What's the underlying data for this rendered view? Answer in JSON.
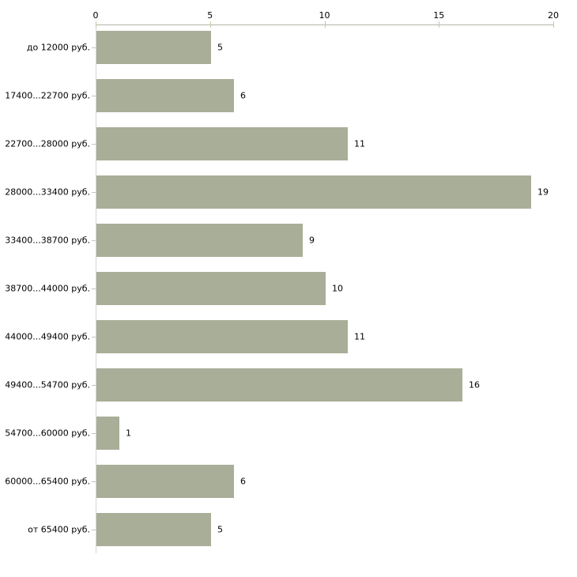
{
  "chart_data": {
    "type": "bar",
    "orientation": "horizontal",
    "title": "",
    "xlabel": "",
    "ylabel": "",
    "categories": [
      "до 12000 руб.",
      "17400...22700 руб.",
      "22700...28000 руб.",
      "28000...33400 руб.",
      "33400...38700 руб.",
      "38700...44000 руб.",
      "44000...49400 руб.",
      "49400...54700 руб.",
      "54700...60000 руб.",
      "60000...65400 руб.",
      "от 65400 руб."
    ],
    "values": [
      5,
      6,
      11,
      19,
      9,
      10,
      11,
      16,
      1,
      6,
      5
    ],
    "x_ticks": [
      0,
      5,
      10,
      15,
      20
    ],
    "xlim": [
      0,
      20
    ],
    "grid": false,
    "legend": false,
    "data_labels": true,
    "axis_position": "top",
    "colors": {
      "bar": "#a9ae98",
      "top_axis_line": "#b3b3ab",
      "left_axis_line": "#d6d6d6",
      "x_tick_mark": "#c9c79f",
      "y_tick_mark": "#c9c0c0",
      "text": "#000000",
      "background": "#ffffff"
    }
  }
}
